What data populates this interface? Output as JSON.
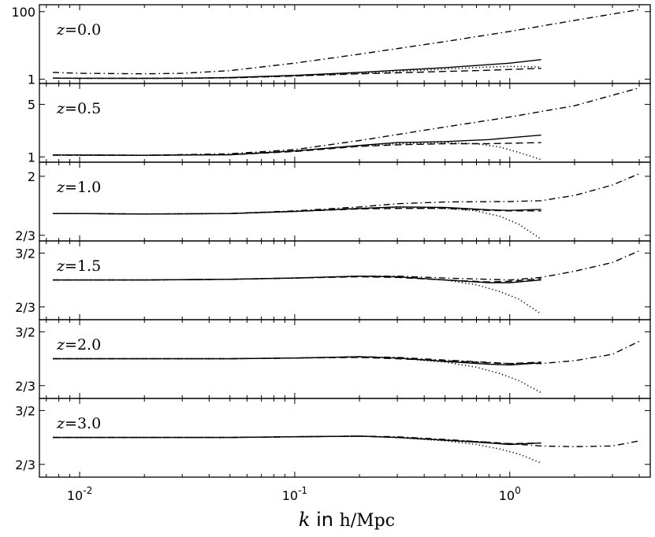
{
  "chart_data": {
    "type": "line",
    "x_scale": "log",
    "xlim": [
      0.0065,
      4.5
    ],
    "x_ticks": [
      {
        "value": 0.01,
        "base": "10",
        "exp": "-2"
      },
      {
        "value": 0.1,
        "base": "10",
        "exp": "-1"
      },
      {
        "value": 1,
        "base": "10",
        "exp": "0"
      }
    ],
    "xlabel": {
      "var": "k",
      "mid": " in ",
      "unit": "h/Mpc"
    },
    "panels": [
      {
        "label": "z = 0.0",
        "y_scale": "log",
        "ylim": [
          0.75,
          160
        ],
        "y_ticks": [
          {
            "value": 1,
            "label": "1"
          },
          {
            "value": 100,
            "label": "100"
          }
        ],
        "series": [
          {
            "style": "solid",
            "x": [
              0.0075,
              0.01,
              0.02,
              0.03,
              0.05,
              0.1,
              0.2,
              0.3,
              0.5,
              0.8,
              1.0,
              1.4
            ],
            "y": [
              1.08,
              1.07,
              1.06,
              1.07,
              1.12,
              1.3,
              1.6,
              1.85,
              2.2,
              2.7,
              3.0,
              3.8
            ]
          },
          {
            "style": "dashed",
            "x": [
              0.0075,
              0.01,
              0.02,
              0.05,
              0.1,
              0.2,
              0.3,
              0.5,
              0.8,
              1.0,
              1.4
            ],
            "y": [
              1.08,
              1.07,
              1.06,
              1.1,
              1.25,
              1.45,
              1.55,
              1.7,
              1.85,
              1.95,
              2.1
            ]
          },
          {
            "style": "dotted",
            "x": [
              0.0075,
              0.01,
              0.02,
              0.05,
              0.1,
              0.2,
              0.3,
              0.5,
              0.8,
              1.0,
              1.4
            ],
            "y": [
              1.08,
              1.07,
              1.06,
              1.1,
              1.25,
              1.5,
              1.7,
              2.0,
              2.3,
              2.4,
              2.3
            ]
          },
          {
            "style": "dashdot",
            "x": [
              0.0075,
              0.01,
              0.02,
              0.03,
              0.05,
              0.1,
              0.2,
              0.5,
              1.0,
              2.0,
              4.0
            ],
            "y": [
              1.6,
              1.5,
              1.45,
              1.5,
              1.8,
              3.0,
              5.5,
              13,
              26,
              55,
              115
            ]
          }
        ]
      },
      {
        "label": "z = 0.5",
        "y_scale": "log",
        "ylim": [
          0.85,
          9.5
        ],
        "y_ticks": [
          {
            "value": 1,
            "label": "1"
          },
          {
            "value": 5,
            "label": "5"
          }
        ],
        "series": [
          {
            "style": "solid",
            "x": [
              0.0075,
              0.01,
              0.02,
              0.05,
              0.1,
              0.2,
              0.3,
              0.5,
              0.8,
              1.0,
              1.4
            ],
            "y": [
              1.06,
              1.06,
              1.05,
              1.07,
              1.2,
              1.42,
              1.55,
              1.6,
              1.7,
              1.8,
              1.95
            ]
          },
          {
            "style": "dashed",
            "x": [
              0.0075,
              0.01,
              0.02,
              0.05,
              0.1,
              0.2,
              0.3,
              0.5,
              0.8,
              1.0,
              1.4
            ],
            "y": [
              1.06,
              1.06,
              1.05,
              1.07,
              1.18,
              1.38,
              1.45,
              1.5,
              1.5,
              1.52,
              1.55
            ]
          },
          {
            "style": "dotted",
            "x": [
              0.0075,
              0.01,
              0.02,
              0.05,
              0.1,
              0.2,
              0.3,
              0.5,
              0.7,
              0.9,
              1.1,
              1.4
            ],
            "y": [
              1.06,
              1.06,
              1.05,
              1.07,
              1.2,
              1.4,
              1.5,
              1.55,
              1.5,
              1.35,
              1.15,
              0.92
            ]
          },
          {
            "style": "dashdot",
            "x": [
              0.0075,
              0.01,
              0.02,
              0.05,
              0.1,
              0.2,
              0.5,
              1.0,
              2.0,
              4.0
            ],
            "y": [
              1.06,
              1.05,
              1.05,
              1.1,
              1.25,
              1.65,
              2.5,
              3.4,
              4.8,
              8.3
            ]
          }
        ]
      },
      {
        "label": "z = 1.0",
        "y_scale": "log",
        "ylim": [
          0.6,
          2.6
        ],
        "y_ticks": [
          {
            "value": 0.6667,
            "label": "2/3"
          },
          {
            "value": 2,
            "label": "2"
          }
        ],
        "series": [
          {
            "style": "solid",
            "x": [
              0.0075,
              0.01,
              0.02,
              0.05,
              0.1,
              0.2,
              0.3,
              0.5,
              0.8,
              1.0,
              1.4
            ],
            "y": [
              1.0,
              1.0,
              0.99,
              1.0,
              1.04,
              1.1,
              1.13,
              1.12,
              1.07,
              1.06,
              1.08
            ]
          },
          {
            "style": "dashed",
            "x": [
              0.0075,
              0.01,
              0.02,
              0.05,
              0.1,
              0.2,
              0.3,
              0.5,
              0.8,
              1.0,
              1.4
            ],
            "y": [
              1.0,
              1.0,
              0.99,
              1.0,
              1.04,
              1.09,
              1.1,
              1.1,
              1.06,
              1.05,
              1.05
            ]
          },
          {
            "style": "dotted",
            "x": [
              0.0075,
              0.01,
              0.02,
              0.05,
              0.1,
              0.2,
              0.3,
              0.5,
              0.7,
              0.9,
              1.1,
              1.4
            ],
            "y": [
              1.0,
              1.0,
              0.99,
              1.0,
              1.04,
              1.1,
              1.12,
              1.1,
              1.05,
              0.95,
              0.82,
              0.62
            ]
          },
          {
            "style": "dashdot",
            "x": [
              0.0075,
              0.01,
              0.02,
              0.05,
              0.1,
              0.2,
              0.3,
              0.5,
              1.0,
              1.4,
              2.0,
              3.0,
              4.0
            ],
            "y": [
              1.0,
              1.0,
              0.99,
              1.0,
              1.05,
              1.13,
              1.2,
              1.24,
              1.25,
              1.27,
              1.4,
              1.7,
              2.1
            ]
          }
        ]
      },
      {
        "label": "z = 1.5",
        "y_scale": "log",
        "ylim": [
          0.55,
          1.8
        ],
        "y_ticks": [
          {
            "value": 0.6667,
            "label": "2/3"
          },
          {
            "value": 1.5,
            "label": "3/2"
          }
        ],
        "series": [
          {
            "style": "solid",
            "x": [
              0.0075,
              0.01,
              0.02,
              0.05,
              0.1,
              0.2,
              0.3,
              0.5,
              0.8,
              1.0,
              1.4
            ],
            "y": [
              1.0,
              1.0,
              1.0,
              1.01,
              1.03,
              1.06,
              1.05,
              1.0,
              0.96,
              0.96,
              1.0
            ]
          },
          {
            "style": "dashed",
            "x": [
              0.0075,
              0.01,
              0.02,
              0.05,
              0.1,
              0.2,
              0.3,
              0.5,
              0.8,
              1.0,
              1.4
            ],
            "y": [
              1.0,
              1.0,
              1.0,
              1.01,
              1.03,
              1.05,
              1.04,
              1.0,
              0.97,
              0.98,
              1.02
            ]
          },
          {
            "style": "dotted",
            "x": [
              0.0075,
              0.01,
              0.02,
              0.05,
              0.1,
              0.2,
              0.3,
              0.5,
              0.7,
              0.9,
              1.1,
              1.4
            ],
            "y": [
              1.0,
              1.0,
              1.0,
              1.01,
              1.03,
              1.06,
              1.05,
              1.0,
              0.93,
              0.84,
              0.75,
              0.6
            ]
          },
          {
            "style": "dashdot",
            "x": [
              0.0075,
              0.01,
              0.02,
              0.05,
              0.1,
              0.2,
              0.3,
              0.5,
              1.0,
              1.4,
              2.0,
              3.0,
              4.0
            ],
            "y": [
              1.0,
              1.0,
              1.0,
              1.01,
              1.03,
              1.06,
              1.06,
              1.03,
              1.0,
              1.04,
              1.14,
              1.3,
              1.55
            ]
          }
        ]
      },
      {
        "label": "z = 2.0",
        "y_scale": "log",
        "ylim": [
          0.55,
          1.8
        ],
        "y_ticks": [
          {
            "value": 0.6667,
            "label": "2/3"
          },
          {
            "value": 1.5,
            "label": "3/2"
          }
        ],
        "series": [
          {
            "style": "solid",
            "x": [
              0.0075,
              0.01,
              0.02,
              0.05,
              0.1,
              0.2,
              0.3,
              0.5,
              0.8,
              1.0,
              1.4
            ],
            "y": [
              1.0,
              1.0,
              1.0,
              1.0,
              1.01,
              1.03,
              1.01,
              0.96,
              0.92,
              0.91,
              0.94
            ]
          },
          {
            "style": "dashed",
            "x": [
              0.0075,
              0.01,
              0.02,
              0.05,
              0.1,
              0.2,
              0.3,
              0.5,
              0.8,
              1.0,
              1.4
            ],
            "y": [
              1.0,
              1.0,
              1.0,
              1.0,
              1.01,
              1.02,
              1.0,
              0.97,
              0.94,
              0.93,
              0.95
            ]
          },
          {
            "style": "dotted",
            "x": [
              0.0075,
              0.01,
              0.02,
              0.05,
              0.1,
              0.2,
              0.3,
              0.5,
              0.7,
              0.9,
              1.1,
              1.4
            ],
            "y": [
              1.0,
              1.0,
              1.0,
              1.0,
              1.01,
              1.03,
              1.01,
              0.95,
              0.88,
              0.8,
              0.72,
              0.6
            ]
          },
          {
            "style": "dashdot",
            "x": [
              0.0075,
              0.01,
              0.02,
              0.05,
              0.1,
              0.2,
              0.3,
              0.5,
              1.0,
              1.4,
              2.0,
              3.0,
              4.0
            ],
            "y": [
              1.0,
              1.0,
              1.0,
              1.0,
              1.01,
              1.03,
              1.02,
              0.98,
              0.93,
              0.93,
              0.97,
              1.07,
              1.3
            ]
          }
        ]
      },
      {
        "label": "z = 3.0",
        "y_scale": "log",
        "ylim": [
          0.55,
          1.8
        ],
        "y_ticks": [
          {
            "value": 0.6667,
            "label": "2/3"
          },
          {
            "value": 1.5,
            "label": "3/2"
          }
        ],
        "series": [
          {
            "style": "solid",
            "x": [
              0.0075,
              0.01,
              0.02,
              0.05,
              0.1,
              0.2,
              0.3,
              0.5,
              0.8,
              1.0,
              1.4
            ],
            "y": [
              1.0,
              1.0,
              1.0,
              1.0,
              1.01,
              1.02,
              1.0,
              0.96,
              0.92,
              0.9,
              0.92
            ]
          },
          {
            "style": "dashed",
            "x": [
              0.0075,
              0.01,
              0.02,
              0.05,
              0.1,
              0.2,
              0.3,
              0.5,
              0.8,
              1.0,
              1.4
            ],
            "y": [
              1.0,
              1.0,
              1.0,
              1.0,
              1.01,
              1.02,
              1.0,
              0.96,
              0.93,
              0.91,
              0.92
            ]
          },
          {
            "style": "dotted",
            "x": [
              0.0075,
              0.01,
              0.02,
              0.05,
              0.1,
              0.2,
              0.3,
              0.5,
              0.7,
              0.9,
              1.1,
              1.4
            ],
            "y": [
              1.0,
              1.0,
              1.0,
              1.0,
              1.01,
              1.02,
              1.0,
              0.95,
              0.9,
              0.84,
              0.78,
              0.68
            ]
          },
          {
            "style": "dashdot",
            "x": [
              0.0075,
              0.01,
              0.02,
              0.05,
              0.1,
              0.2,
              0.3,
              0.5,
              1.0,
              1.4,
              2.0,
              3.0,
              4.0
            ],
            "y": [
              1.0,
              1.0,
              1.0,
              1.0,
              1.01,
              1.02,
              1.01,
              0.97,
              0.91,
              0.88,
              0.87,
              0.88,
              0.95
            ]
          }
        ]
      }
    ]
  }
}
